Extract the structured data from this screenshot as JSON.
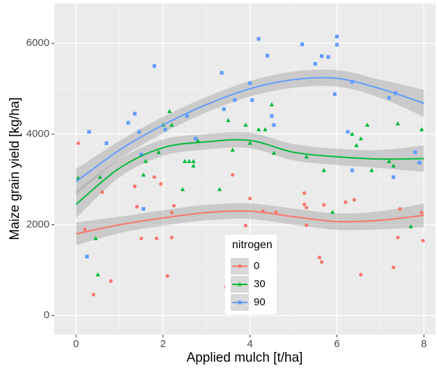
{
  "chart_data": {
    "type": "scatter-smooth",
    "x_label": "Applied mulch [t/ha]",
    "y_label": "Maize grain yield [kg/ha]",
    "xlim": [
      -0.5,
      8.27
    ],
    "ylim": [
      -420,
      6880
    ],
    "xticks": [
      0,
      2,
      4,
      6,
      8
    ],
    "yticks": [
      0,
      2000,
      4000,
      6000
    ],
    "grid": true,
    "minor_grid": true,
    "legend_title": "nitrogen",
    "legend_position": "inside-bottom",
    "series": [
      {
        "name": "0",
        "color": "#F8766D",
        "shape": "circle",
        "x": [
          0.05,
          0.2,
          0.4,
          0.6,
          0.8,
          1.35,
          1.4,
          1.5,
          1.8,
          1.85,
          1.95,
          2.1,
          2.2,
          2.25,
          2.2,
          3.45,
          3.6,
          3.9,
          4.0,
          4.3,
          4.6,
          5.25,
          5.25,
          5.3,
          5.3,
          5.6,
          5.65,
          5.7,
          6.2,
          6.4,
          6.55,
          7.3,
          7.4,
          7.45,
          7.95,
          7.98
        ],
        "values": [
          3800,
          1900,
          460,
          2720,
          760,
          2850,
          2400,
          1700,
          3050,
          1700,
          2900,
          870,
          1720,
          2420,
          2270,
          630,
          3100,
          1980,
          2580,
          2300,
          2280,
          2700,
          2450,
          2380,
          1990,
          1280,
          1180,
          2440,
          2500,
          2550,
          900,
          1060,
          1720,
          2350,
          2270,
          1650
        ],
        "smooth": {
          "x": [
            0,
            1,
            2,
            3,
            4,
            5,
            6,
            7,
            8
          ],
          "values": [
            1800,
            2000,
            2150,
            2270,
            2300,
            2180,
            2070,
            2100,
            2210
          ],
          "lower": [
            1550,
            1820,
            1980,
            2100,
            2130,
            2000,
            1890,
            1900,
            1950
          ],
          "upper": [
            2050,
            2180,
            2320,
            2440,
            2470,
            2360,
            2250,
            2300,
            2470
          ]
        }
      },
      {
        "name": "30",
        "color": "#00BA38",
        "shape": "triangle",
        "x": [
          0.05,
          0.45,
          0.5,
          0.55,
          1.55,
          1.6,
          1.9,
          2.0,
          2.15,
          2.2,
          2.45,
          2.5,
          2.6,
          2.7,
          2.7,
          2.8,
          3.3,
          3.5,
          3.6,
          3.9,
          4.0,
          4.2,
          4.35,
          4.5,
          4.55,
          5.3,
          5.7,
          5.9,
          6.35,
          6.45,
          6.55,
          6.7,
          6.8,
          7.2,
          7.3,
          7.4,
          7.7,
          7.95
        ],
        "values": [
          3030,
          1700,
          900,
          3050,
          3100,
          3400,
          3600,
          4200,
          4500,
          4200,
          2780,
          3400,
          3400,
          3300,
          3400,
          3850,
          2780,
          4300,
          3650,
          4200,
          3800,
          4100,
          4100,
          4650,
          3580,
          3500,
          3200,
          2280,
          4000,
          3750,
          3900,
          4200,
          3200,
          3400,
          3300,
          4230,
          1960,
          4100
        ],
        "smooth": {
          "x": [
            0,
            1,
            2,
            3,
            4,
            5,
            6,
            7,
            8
          ],
          "values": [
            2450,
            3250,
            3700,
            3830,
            3860,
            3600,
            3500,
            3450,
            3460
          ],
          "lower": [
            2150,
            3050,
            3520,
            3660,
            3690,
            3420,
            3320,
            3250,
            3170
          ],
          "upper": [
            2750,
            3450,
            3880,
            4000,
            4030,
            3780,
            3680,
            3650,
            3750
          ]
        }
      },
      {
        "name": "90",
        "color": "#619CFF",
        "shape": "square",
        "x": [
          0.25,
          0.3,
          0.7,
          1.2,
          1.35,
          1.45,
          1.5,
          1.55,
          1.8,
          2.05,
          2.55,
          2.75,
          3.35,
          3.4,
          3.65,
          4.0,
          4.05,
          4.2,
          4.4,
          4.5,
          4.55,
          5.2,
          5.5,
          5.65,
          5.8,
          5.95,
          6.0,
          6.0,
          6.25,
          6.35,
          6.35,
          7.2,
          7.3,
          7.35,
          7.8,
          7.9
        ],
        "values": [
          1300,
          4050,
          3800,
          4250,
          4450,
          4050,
          3550,
          2350,
          5500,
          4100,
          4400,
          3900,
          5350,
          4550,
          4750,
          5120,
          4750,
          6100,
          5730,
          4400,
          4200,
          5980,
          5550,
          5720,
          5700,
          4880,
          5970,
          6150,
          4050,
          3200,
          5150,
          4800,
          3050,
          4900,
          3600,
          3370
        ],
        "smooth": {
          "x": [
            0,
            1,
            2,
            3,
            4,
            5,
            6,
            7,
            8
          ],
          "values": [
            2950,
            3650,
            4200,
            4650,
            5000,
            5200,
            5230,
            5000,
            4680
          ],
          "lower": [
            2670,
            3450,
            4020,
            4480,
            4830,
            5020,
            5050,
            4800,
            4380
          ],
          "upper": [
            3230,
            3850,
            4380,
            4820,
            5170,
            5380,
            5410,
            5200,
            4980
          ]
        }
      }
    ]
  }
}
